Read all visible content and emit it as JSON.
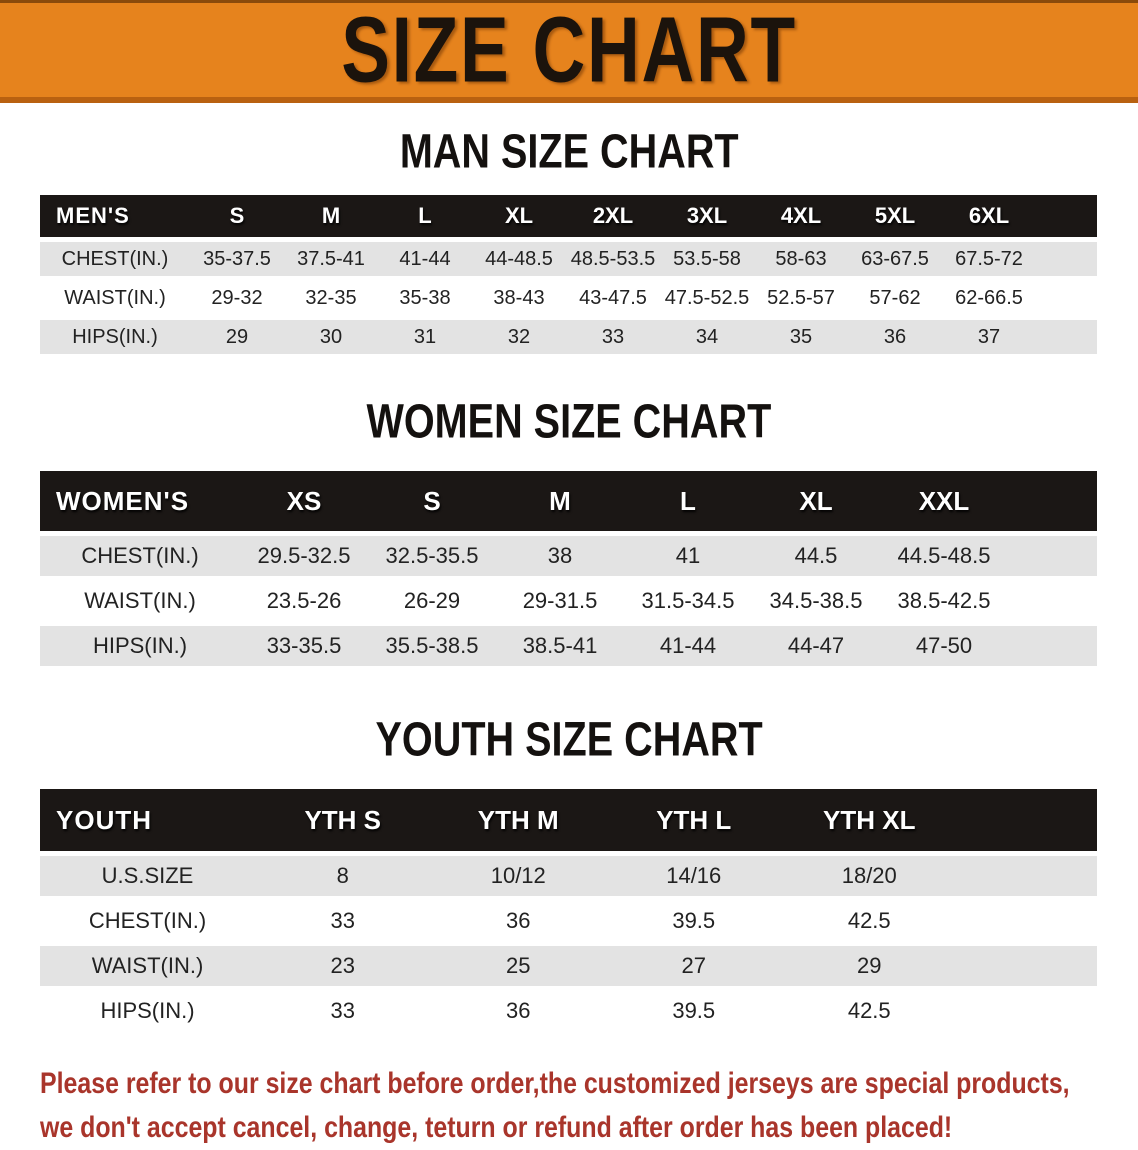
{
  "banner": {
    "title": "SIZE CHART",
    "bg_color": "#E6831D",
    "edge_color": "#B96110"
  },
  "sections": [
    {
      "id": "men",
      "title": "MAN SIZE CHART",
      "table": {
        "header_label": "MEN'S",
        "sizes": [
          "S",
          "M",
          "L",
          "XL",
          "2XL",
          "3XL",
          "4XL",
          "5XL",
          "6XL"
        ],
        "rows": [
          {
            "label": "CHEST(IN.)",
            "values": [
              "35-37.5",
              "37.5-41",
              "41-44",
              "44-48.5",
              "48.5-53.5",
              "53.5-58",
              "58-63",
              "63-67.5",
              "67.5-72"
            ]
          },
          {
            "label": "WAIST(IN.)",
            "values": [
              "29-32",
              "32-35",
              "35-38",
              "38-43",
              "43-47.5",
              "47.5-52.5",
              "52.5-57",
              "57-62",
              "62-66.5"
            ]
          },
          {
            "label": "HIPS(IN.)",
            "values": [
              "29",
              "30",
              "31",
              "32",
              "33",
              "34",
              "35",
              "36",
              "37"
            ]
          }
        ]
      }
    },
    {
      "id": "women",
      "title": "WOMEN SIZE CHART",
      "table": {
        "header_label": "WOMEN'S",
        "sizes": [
          "XS",
          "S",
          "M",
          "L",
          "XL",
          "XXL"
        ],
        "rows": [
          {
            "label": "CHEST(IN.)",
            "values": [
              "29.5-32.5",
              "32.5-35.5",
              "38",
              "41",
              "44.5",
              "44.5-48.5"
            ]
          },
          {
            "label": "WAIST(IN.)",
            "values": [
              "23.5-26",
              "26-29",
              "29-31.5",
              "31.5-34.5",
              "34.5-38.5",
              "38.5-42.5"
            ]
          },
          {
            "label": "HIPS(IN.)",
            "values": [
              "33-35.5",
              "35.5-38.5",
              "38.5-41",
              "41-44",
              "44-47",
              "47-50"
            ]
          }
        ]
      }
    },
    {
      "id": "youth",
      "title": "YOUTH SIZE CHART",
      "table": {
        "header_label": "YOUTH",
        "sizes": [
          "YTH S",
          "YTH M",
          "YTH L",
          "YTH XL"
        ],
        "rows": [
          {
            "label": "U.S.SIZE",
            "values": [
              "8",
              "10/12",
              "14/16",
              "18/20"
            ]
          },
          {
            "label": "CHEST(IN.)",
            "values": [
              "33",
              "36",
              "39.5",
              "42.5"
            ]
          },
          {
            "label": "WAIST(IN.)",
            "values": [
              "23",
              "25",
              "27",
              "29"
            ]
          },
          {
            "label": "HIPS(IN.)",
            "values": [
              "33",
              "36",
              "39.5",
              "42.5"
            ]
          }
        ]
      }
    }
  ],
  "note": {
    "color": "#A9352B",
    "lines": [
      "Please refer to our size chart before order,the customized jerseys are special products,",
      "we don't accept cancel, change, teturn or refund after order has been placed!"
    ]
  }
}
